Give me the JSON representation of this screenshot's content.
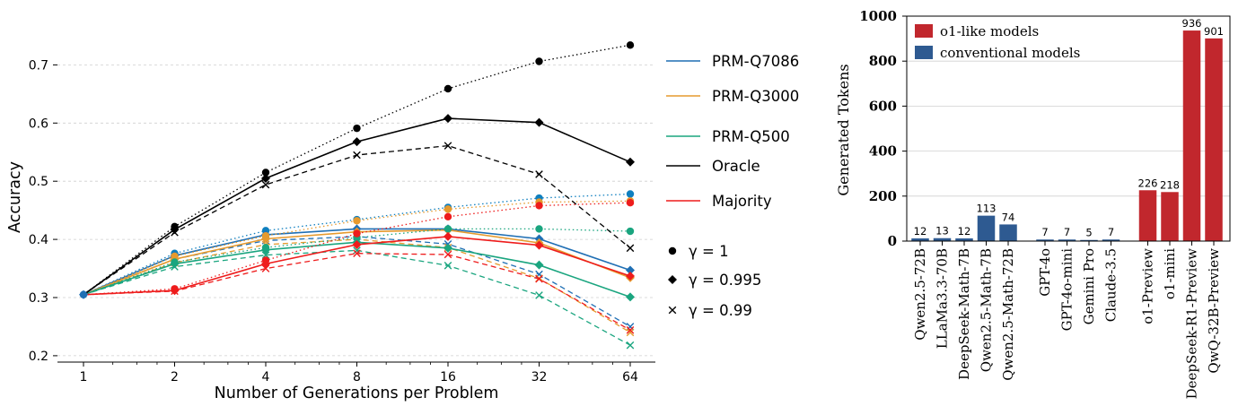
{
  "chart_data": [
    {
      "type": "line",
      "xlabel": "Number of Generations per Problem",
      "ylabel": "Accuracy",
      "x": [
        1,
        2,
        4,
        8,
        16,
        32,
        64
      ],
      "x_scale": "log2",
      "xticks": [
        "1",
        "2",
        "4",
        "8",
        "16",
        "32",
        "64"
      ],
      "yticks": [
        "0.2",
        "0.3",
        "0.4",
        "0.5",
        "0.6",
        "0.7"
      ],
      "ylim": [
        0.19,
        0.76
      ],
      "grid": "horizontal",
      "legend_methods": [
        {
          "name": "PRM-Q7086",
          "color": "#1f6fb4"
        },
        {
          "name": "PRM-Q3000",
          "color": "#e69a2e"
        },
        {
          "name": "PRM-Q500",
          "color": "#1aa57f"
        },
        {
          "name": "Oracle",
          "color": "#000000"
        },
        {
          "name": "Majority",
          "color": "#ee1c1c"
        }
      ],
      "legend_gamma": [
        {
          "label": "γ = 1",
          "marker": "circle",
          "linestyle": "dotted"
        },
        {
          "label": "γ = 0.995",
          "marker": "diamond",
          "linestyle": "solid"
        },
        {
          "label": "γ = 0.99",
          "marker": "x",
          "linestyle": "dashed"
        }
      ],
      "series": [
        {
          "method": "PRM-Q7086",
          "gamma": "1",
          "color": "#0f7fbf",
          "values": [
            0.305,
            0.376,
            0.415,
            0.434,
            0.455,
            0.471,
            0.478
          ]
        },
        {
          "method": "PRM-Q7086",
          "gamma": "0.995",
          "color": "#1f6fb4",
          "values": [
            0.305,
            0.372,
            0.408,
            0.418,
            0.418,
            0.401,
            0.347
          ]
        },
        {
          "method": "PRM-Q7086",
          "gamma": "0.99",
          "color": "#1f6fb4",
          "values": [
            0.305,
            0.366,
            0.398,
            0.405,
            0.392,
            0.34,
            0.25
          ]
        },
        {
          "method": "PRM-Q3000",
          "gamma": "1",
          "color": "#e69a2e",
          "values": [
            0.305,
            0.371,
            0.406,
            0.432,
            0.452,
            0.464,
            0.466
          ]
        },
        {
          "method": "PRM-Q3000",
          "gamma": "0.995",
          "color": "#e69a2e",
          "values": [
            0.305,
            0.366,
            0.401,
            0.413,
            0.416,
            0.394,
            0.334
          ]
        },
        {
          "method": "PRM-Q3000",
          "gamma": "0.99",
          "color": "#e69a2e",
          "values": [
            0.305,
            0.36,
            0.391,
            0.4,
            0.386,
            0.333,
            0.24
          ]
        },
        {
          "method": "PRM-Q500",
          "gamma": "1",
          "color": "#1aa57f",
          "values": [
            0.305,
            0.361,
            0.386,
            0.403,
            0.418,
            0.418,
            0.414
          ]
        },
        {
          "method": "PRM-Q500",
          "gamma": "0.995",
          "color": "#1aa57f",
          "values": [
            0.305,
            0.358,
            0.382,
            0.395,
            0.385,
            0.356,
            0.301
          ]
        },
        {
          "method": "PRM-Q500",
          "gamma": "0.99",
          "color": "#1aa57f",
          "values": [
            0.305,
            0.353,
            0.373,
            0.381,
            0.355,
            0.304,
            0.218
          ]
        },
        {
          "method": "Oracle",
          "gamma": "1",
          "color": "#000000",
          "values": [
            0.305,
            0.422,
            0.515,
            0.591,
            0.659,
            0.706,
            0.734
          ]
        },
        {
          "method": "Oracle",
          "gamma": "0.995",
          "color": "#000000",
          "values": [
            0.305,
            0.417,
            0.505,
            0.568,
            0.608,
            0.601,
            0.533
          ]
        },
        {
          "method": "Oracle",
          "gamma": "0.99",
          "color": "#000000",
          "values": [
            0.305,
            0.412,
            0.494,
            0.545,
            0.561,
            0.512,
            0.385
          ]
        },
        {
          "method": "Majority",
          "gamma": "1",
          "color": "#ee1c1c",
          "values": [
            0.305,
            0.315,
            0.364,
            0.41,
            0.439,
            0.458,
            0.463
          ]
        },
        {
          "method": "Majority",
          "gamma": "0.995",
          "color": "#ee1c1c",
          "values": [
            0.305,
            0.312,
            0.358,
            0.391,
            0.405,
            0.39,
            0.337
          ]
        },
        {
          "method": "Majority",
          "gamma": "0.99",
          "color": "#ee1c1c",
          "values": [
            0.305,
            0.311,
            0.35,
            0.376,
            0.374,
            0.332,
            0.244
          ]
        }
      ]
    },
    {
      "type": "bar",
      "ylabel": "Generated Tokens",
      "ylim": [
        0,
        1000
      ],
      "yticks": [
        "0",
        "200",
        "400",
        "600",
        "800",
        "1000"
      ],
      "grid": "horizontal",
      "legend": [
        {
          "name": "o1-like models",
          "color": "#c1272d"
        },
        {
          "name": "conventional models",
          "color": "#2e5a91"
        }
      ],
      "legend_placement": "top-left",
      "groups": [
        [
          {
            "label": "Qwen2.5-72B",
            "value": 12,
            "value_label": "12",
            "kind": "conventional models"
          },
          {
            "label": "LLaMa3.3-70B",
            "value": 13,
            "value_label": "13",
            "kind": "conventional models"
          },
          {
            "label": "DeepSeek-Math-7B",
            "value": 12,
            "value_label": "12",
            "kind": "conventional models"
          },
          {
            "label": "Qwen2.5-Math-7B",
            "value": 113,
            "value_label": "113",
            "kind": "conventional models"
          },
          {
            "label": "Qwen2.5-Math-72B",
            "value": 74,
            "value_label": "74",
            "kind": "conventional models"
          }
        ],
        [
          {
            "label": "GPT-4o",
            "value": 7,
            "value_label": "7",
            "kind": "conventional models"
          },
          {
            "label": "GPT-4o-mini",
            "value": 7,
            "value_label": "7",
            "kind": "conventional models"
          },
          {
            "label": "Gemini Pro",
            "value": 5,
            "value_label": "5",
            "kind": "conventional models"
          },
          {
            "label": "Claude-3.5",
            "value": 7,
            "value_label": "7",
            "kind": "conventional models"
          }
        ],
        [
          {
            "label": "o1-Preview",
            "value": 226,
            "value_label": "226",
            "kind": "o1-like models"
          },
          {
            "label": "o1-mini",
            "value": 218,
            "value_label": "218",
            "kind": "o1-like models"
          },
          {
            "label": "DeepSeek-R1-Preview",
            "value": 936,
            "value_label": "936",
            "kind": "o1-like models"
          },
          {
            "label": "QwQ-32B-Preview",
            "value": 901,
            "value_label": "901",
            "kind": "o1-like models"
          }
        ]
      ]
    }
  ]
}
